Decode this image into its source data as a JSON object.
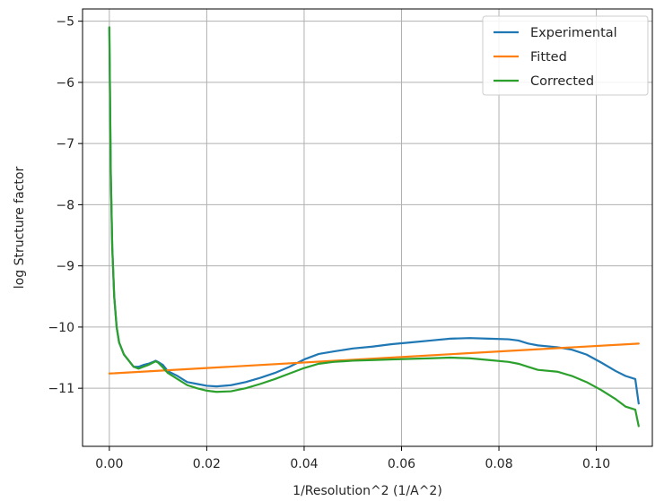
{
  "chart_data": {
    "type": "line",
    "title": "",
    "xlabel": "1/Resolution^2 (1/A^2)",
    "ylabel": "log Structure factor",
    "xlim": [
      -0.0055,
      0.1115
    ],
    "ylim": [
      -11.95,
      -4.8
    ],
    "xticks": [
      0.0,
      0.02,
      0.04,
      0.06,
      0.08,
      0.1
    ],
    "xtick_labels": [
      "0.00",
      "0.02",
      "0.04",
      "0.06",
      "0.08",
      "0.10"
    ],
    "yticks": [
      -5,
      -6,
      -7,
      -8,
      -9,
      -10,
      -11
    ],
    "ytick_labels": [
      "−5",
      "−6",
      "−7",
      "−8",
      "−9",
      "−10",
      "−11"
    ],
    "grid": true,
    "legend_position": "top-right",
    "series": [
      {
        "name": "Experimental",
        "color": "#1f77b4",
        "points": [
          [
            0.0,
            -5.1
          ],
          [
            0.0003,
            -7.5
          ],
          [
            0.0006,
            -8.7
          ],
          [
            0.001,
            -9.5
          ],
          [
            0.0015,
            -10.0
          ],
          [
            0.002,
            -10.25
          ],
          [
            0.003,
            -10.45
          ],
          [
            0.004,
            -10.55
          ],
          [
            0.005,
            -10.65
          ],
          [
            0.006,
            -10.65
          ],
          [
            0.007,
            -10.62
          ],
          [
            0.008,
            -10.6
          ],
          [
            0.009,
            -10.57
          ],
          [
            0.0095,
            -10.55
          ],
          [
            0.01,
            -10.57
          ],
          [
            0.011,
            -10.62
          ],
          [
            0.012,
            -10.72
          ],
          [
            0.014,
            -10.8
          ],
          [
            0.016,
            -10.9
          ],
          [
            0.018,
            -10.93
          ],
          [
            0.02,
            -10.96
          ],
          [
            0.022,
            -10.97
          ],
          [
            0.025,
            -10.95
          ],
          [
            0.028,
            -10.9
          ],
          [
            0.031,
            -10.83
          ],
          [
            0.034,
            -10.75
          ],
          [
            0.037,
            -10.65
          ],
          [
            0.04,
            -10.53
          ],
          [
            0.043,
            -10.44
          ],
          [
            0.046,
            -10.4
          ],
          [
            0.05,
            -10.35
          ],
          [
            0.054,
            -10.32
          ],
          [
            0.058,
            -10.28
          ],
          [
            0.062,
            -10.25
          ],
          [
            0.066,
            -10.22
          ],
          [
            0.07,
            -10.19
          ],
          [
            0.074,
            -10.18
          ],
          [
            0.078,
            -10.19
          ],
          [
            0.082,
            -10.2
          ],
          [
            0.084,
            -10.22
          ],
          [
            0.086,
            -10.27
          ],
          [
            0.088,
            -10.3
          ],
          [
            0.092,
            -10.33
          ],
          [
            0.095,
            -10.37
          ],
          [
            0.098,
            -10.45
          ],
          [
            0.101,
            -10.58
          ],
          [
            0.104,
            -10.72
          ],
          [
            0.106,
            -10.8
          ],
          [
            0.108,
            -10.85
          ],
          [
            0.1087,
            -11.25
          ]
        ]
      },
      {
        "name": "Fitted",
        "color": "#ff7f0e",
        "points": [
          [
            0.0,
            -10.76
          ],
          [
            0.1087,
            -10.27
          ]
        ]
      },
      {
        "name": "Corrected",
        "color": "#2ca02c",
        "points": [
          [
            0.0,
            -5.1
          ],
          [
            0.0003,
            -7.5
          ],
          [
            0.0006,
            -8.7
          ],
          [
            0.001,
            -9.5
          ],
          [
            0.0015,
            -10.0
          ],
          [
            0.002,
            -10.25
          ],
          [
            0.003,
            -10.45
          ],
          [
            0.004,
            -10.55
          ],
          [
            0.005,
            -10.65
          ],
          [
            0.006,
            -10.68
          ],
          [
            0.007,
            -10.65
          ],
          [
            0.008,
            -10.62
          ],
          [
            0.009,
            -10.58
          ],
          [
            0.0095,
            -10.56
          ],
          [
            0.01,
            -10.58
          ],
          [
            0.011,
            -10.66
          ],
          [
            0.012,
            -10.75
          ],
          [
            0.014,
            -10.85
          ],
          [
            0.016,
            -10.95
          ],
          [
            0.018,
            -11.0
          ],
          [
            0.02,
            -11.04
          ],
          [
            0.022,
            -11.06
          ],
          [
            0.025,
            -11.05
          ],
          [
            0.028,
            -11.0
          ],
          [
            0.031,
            -10.93
          ],
          [
            0.034,
            -10.85
          ],
          [
            0.037,
            -10.76
          ],
          [
            0.04,
            -10.67
          ],
          [
            0.043,
            -10.6
          ],
          [
            0.046,
            -10.57
          ],
          [
            0.05,
            -10.55
          ],
          [
            0.054,
            -10.54
          ],
          [
            0.058,
            -10.53
          ],
          [
            0.062,
            -10.52
          ],
          [
            0.066,
            -10.51
          ],
          [
            0.07,
            -10.5
          ],
          [
            0.074,
            -10.51
          ],
          [
            0.078,
            -10.54
          ],
          [
            0.082,
            -10.57
          ],
          [
            0.084,
            -10.6
          ],
          [
            0.086,
            -10.65
          ],
          [
            0.088,
            -10.7
          ],
          [
            0.092,
            -10.73
          ],
          [
            0.095,
            -10.8
          ],
          [
            0.098,
            -10.9
          ],
          [
            0.101,
            -11.03
          ],
          [
            0.104,
            -11.18
          ],
          [
            0.106,
            -11.3
          ],
          [
            0.108,
            -11.35
          ],
          [
            0.1087,
            -11.62
          ]
        ]
      }
    ]
  }
}
